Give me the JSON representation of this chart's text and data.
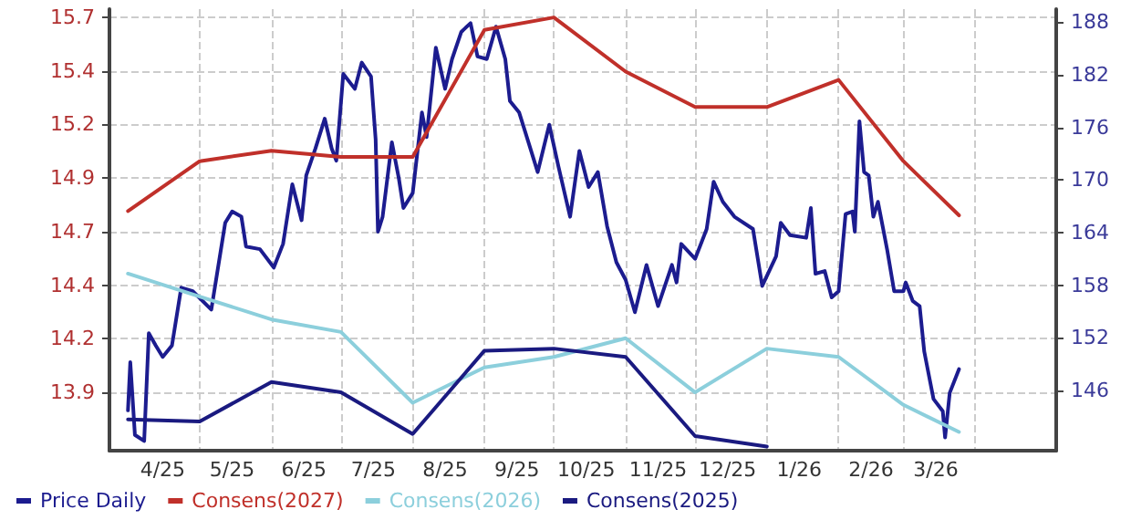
{
  "chart_data": {
    "type": "line",
    "grid": true,
    "legend": "bottom left",
    "marker": "none",
    "line_style": "solid",
    "xlim": [
      "2025-03-23",
      "2026-05-06"
    ],
    "xticks": [
      {
        "value": "2025-04-15",
        "label": "4/25"
      },
      {
        "value": "2025-05-15",
        "label": "5/25"
      },
      {
        "value": "2025-06-15",
        "label": "6/25"
      },
      {
        "value": "2025-07-15",
        "label": "7/25"
      },
      {
        "value": "2025-08-15",
        "label": "8/25"
      },
      {
        "value": "2025-09-15",
        "label": "9/25"
      },
      {
        "value": "2025-10-15",
        "label": "10/25"
      },
      {
        "value": "2025-11-15",
        "label": "11/25"
      },
      {
        "value": "2025-12-15",
        "label": "12/25"
      },
      {
        "value": "2026-01-15",
        "label": "1/26"
      },
      {
        "value": "2026-02-15",
        "label": "2/26"
      },
      {
        "value": "2026-03-15",
        "label": "3/26"
      },
      {
        "value": "2025-05-01",
        "label": null
      },
      {
        "value": "2025-06-01",
        "label": null
      },
      {
        "value": "2025-07-01",
        "label": null
      },
      {
        "value": "2025-08-01",
        "label": null
      },
      {
        "value": "2025-09-01",
        "label": null
      },
      {
        "value": "2025-10-01",
        "label": null
      },
      {
        "value": "2025-11-01",
        "label": null
      },
      {
        "value": "2025-12-01",
        "label": null
      },
      {
        "value": "2026-01-01",
        "label": null
      },
      {
        "value": "2026-02-01",
        "label": null
      },
      {
        "value": "2026-03-01",
        "label": null
      },
      {
        "value": "2026-04-01",
        "label": null
      }
    ],
    "ylim": [
      13.62,
      15.74
    ],
    "yticks": [
      13.9,
      {
        "value": 14.157,
        "label": "14.2"
      },
      {
        "value": 14.414,
        "label": "14.4"
      },
      {
        "value": 14.671,
        "label": "14.7"
      },
      {
        "value": 14.929,
        "label": "14.9"
      },
      {
        "value": 15.186,
        "label": "15.2"
      },
      {
        "value": 15.443,
        "label": "15.4"
      },
      15.7
    ],
    "y2lim": [
      139.1,
      189.5
    ],
    "y2ticks": [
      146,
      152,
      158,
      164,
      170,
      176,
      182,
      188
    ],
    "series": [
      {
        "name": "Price Daily",
        "color": "#1c1c8f",
        "axis": "y2",
        "x": [
          "2025-03-31",
          "2025-04-01",
          "2025-04-03",
          "2025-04-07",
          "2025-04-09",
          "2025-04-12",
          "2025-04-15",
          "2025-04-19",
          "2025-04-23",
          "2025-04-28",
          "2025-05-06",
          "2025-05-12",
          "2025-05-15",
          "2025-05-19",
          "2025-05-21",
          "2025-05-27",
          "2025-06-02",
          "2025-06-06",
          "2025-06-10",
          "2025-06-14",
          "2025-06-16",
          "2025-06-20",
          "2025-06-24",
          "2025-06-27",
          "2025-06-29",
          "2025-07-02",
          "2025-07-07",
          "2025-07-10",
          "2025-07-14",
          "2025-07-16",
          "2025-07-17",
          "2025-07-19",
          "2025-07-23",
          "2025-07-26",
          "2025-07-28",
          "2025-08-01",
          "2025-08-05",
          "2025-08-07",
          "2025-08-11",
          "2025-08-15",
          "2025-08-18",
          "2025-08-22",
          "2025-08-26",
          "2025-08-29",
          "2025-09-02",
          "2025-09-06",
          "2025-09-10",
          "2025-09-12",
          "2025-09-16",
          "2025-09-20",
          "2025-09-24",
          "2025-09-29",
          "2025-10-03",
          "2025-10-08",
          "2025-10-12",
          "2025-10-16",
          "2025-10-20",
          "2025-10-24",
          "2025-10-28",
          "2025-11-01",
          "2025-11-05",
          "2025-11-10",
          "2025-11-15",
          "2025-11-21",
          "2025-11-23",
          "2025-11-25",
          "2025-12-01",
          "2025-12-06",
          "2025-12-09",
          "2025-12-13",
          "2025-12-18",
          "2025-12-26",
          "2025-12-30",
          "2026-01-05",
          "2026-01-07",
          "2026-01-11",
          "2026-01-18",
          "2026-01-20",
          "2026-01-22",
          "2026-01-26",
          "2026-01-29",
          "2026-02-01",
          "2026-02-04",
          "2026-02-07",
          "2026-02-08",
          "2026-02-10",
          "2026-02-12",
          "2026-02-14",
          "2026-02-16",
          "2026-02-18",
          "2026-02-22",
          "2026-02-25",
          "2026-03-01",
          "2026-03-02",
          "2026-03-05",
          "2026-03-08",
          "2026-03-10",
          "2026-03-14",
          "2026-03-18",
          "2026-03-19",
          "2026-03-21",
          "2026-03-25"
        ],
        "values": [
          143.7,
          149.2,
          140.9,
          140.2,
          152.5,
          151.1,
          149.8,
          151.1,
          157.7,
          157.3,
          155.2,
          165.1,
          166.4,
          165.8,
          162.4,
          162.1,
          160.0,
          162.7,
          169.5,
          165.4,
          170.5,
          173.6,
          177.0,
          173.6,
          172.2,
          182.1,
          180.4,
          183.4,
          181.8,
          174.6,
          164.1,
          165.8,
          174.3,
          170.2,
          166.8,
          168.5,
          177.7,
          174.9,
          185.1,
          180.4,
          183.8,
          186.9,
          187.9,
          184.1,
          183.8,
          187.5,
          183.8,
          179.0,
          177.7,
          174.3,
          170.9,
          176.3,
          171.5,
          165.8,
          173.3,
          169.2,
          170.9,
          164.7,
          160.6,
          158.6,
          154.9,
          160.3,
          155.6,
          160.3,
          158.3,
          162.7,
          161.0,
          164.4,
          169.8,
          167.5,
          165.8,
          164.4,
          157.9,
          161.3,
          165.1,
          163.7,
          163.4,
          166.8,
          159.3,
          159.6,
          156.6,
          157.3,
          166.1,
          166.4,
          164.1,
          176.7,
          170.9,
          170.5,
          165.8,
          167.5,
          162.0,
          157.3,
          157.3,
          158.3,
          156.2,
          155.6,
          150.4,
          145.0,
          143.6,
          140.6,
          145.7,
          148.4
        ]
      },
      {
        "name": "Consens(2027)",
        "color": "#c0302a",
        "x": [
          "2025-03-31",
          "2025-05-01",
          "2025-06-01",
          "2025-07-01",
          "2025-08-01",
          "2025-09-01",
          "2025-10-01",
          "2025-11-01",
          "2025-12-01",
          "2026-01-01",
          "2026-02-01",
          "2026-03-01",
          "2026-03-25"
        ],
        "values": [
          14.77,
          15.01,
          15.06,
          15.03,
          15.03,
          15.64,
          15.7,
          15.44,
          15.27,
          15.27,
          15.4,
          15.01,
          14.75
        ]
      },
      {
        "name": "Consens(2026)",
        "color": "#8ccfdc",
        "x": [
          "2025-03-31",
          "2025-05-01",
          "2025-06-01",
          "2025-07-01",
          "2025-08-01",
          "2025-09-01",
          "2025-10-01",
          "2025-11-01",
          "2025-12-01",
          "2026-01-01",
          "2026-02-01",
          "2026-03-01",
          "2026-03-25"
        ],
        "values": [
          14.47,
          14.36,
          14.25,
          14.19,
          13.85,
          14.02,
          14.07,
          14.16,
          13.9,
          14.11,
          14.07,
          13.84,
          13.71
        ]
      },
      {
        "name": "Consens(2025)",
        "color": "#1a1a80",
        "x": [
          "2025-03-31",
          "2025-05-01",
          "2025-06-01",
          "2025-07-01",
          "2025-08-01",
          "2025-09-01",
          "2025-10-01",
          "2025-11-01",
          "2025-12-01",
          "2026-01-01"
        ],
        "values": [
          13.77,
          13.76,
          13.95,
          13.9,
          13.7,
          14.1,
          14.11,
          14.07,
          13.69,
          13.64
        ]
      }
    ]
  }
}
